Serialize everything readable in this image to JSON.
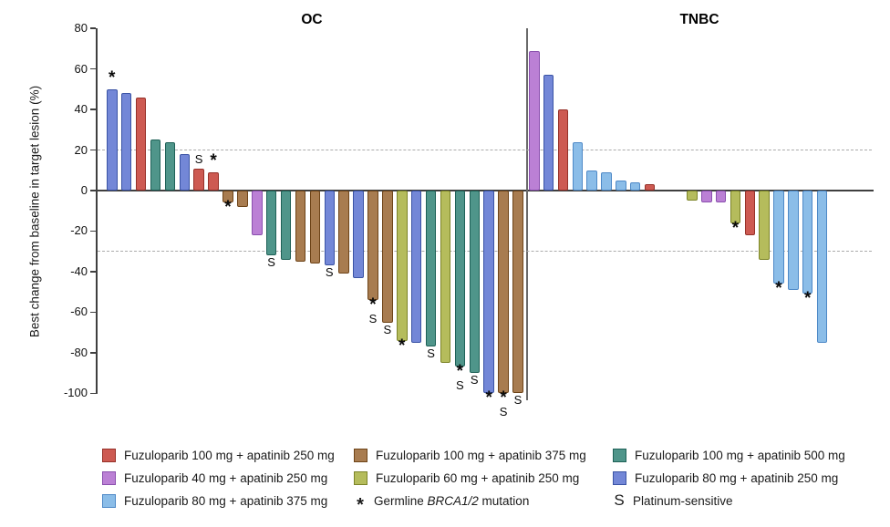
{
  "chart_data": {
    "type": "bar",
    "variant": "waterfall",
    "title": "",
    "xlabel": "",
    "ylabel": "Best change from baseline in target lesion (%)",
    "ylim": [
      -100,
      80
    ],
    "yticks": [
      80,
      60,
      40,
      20,
      0,
      -20,
      -40,
      -60,
      -80,
      -100
    ],
    "reference_lines": [
      20,
      -30
    ],
    "grid": "off",
    "legend_position": "bottom",
    "groups": {
      "f100a250": {
        "label": "Fuzuloparib 100 mg + apatinib 250 mg",
        "fill": "#cd5a52",
        "edge": "#963129"
      },
      "f100a375": {
        "label": "Fuzuloparib 100 mg + apatinib 375 mg",
        "fill": "#a87c50",
        "edge": "#6e4418"
      },
      "f100a500": {
        "label": "Fuzuloparib 100 mg + apatinib 500 mg",
        "fill": "#4f958a",
        "edge": "#1e6157"
      },
      "f40a250": {
        "label": "Fuzuloparib 40 mg + apatinib 250 mg",
        "fill": "#bb80d5",
        "edge": "#8a4fae"
      },
      "f60a250": {
        "label": "Fuzuloparib 60 mg + apatinib 250 mg",
        "fill": "#b5bc5c",
        "edge": "#7c8428"
      },
      "f80a250": {
        "label": "Fuzuloparib 80 mg + apatinib 250 mg",
        "fill": "#7387d7",
        "edge": "#3a53a5"
      },
      "f80a375": {
        "label": "Fuzuloparib 80 mg + apatinib 375 mg",
        "fill": "#8bbde8",
        "edge": "#4e89c7"
      }
    },
    "markers": {
      "brca": {
        "symbol": "*",
        "label_parts": [
          {
            "text": "Germline "
          },
          {
            "text": "BRCA1/2",
            "italic": true
          },
          {
            "text": " mutation"
          }
        ]
      },
      "plat": {
        "symbol": "S",
        "label_parts": [
          {
            "text": "Platinum-sensitive"
          }
        ]
      }
    },
    "legend_order": [
      [
        "f100a250",
        "f100a375",
        "f100a500"
      ],
      [
        "f40a250",
        "f60a250",
        "f80a250"
      ],
      [
        "f80a375",
        "marker:brca",
        "marker:plat"
      ]
    ],
    "panels": [
      {
        "label": "OC",
        "bars": [
          {
            "value": 50,
            "group": "f80a250",
            "flags": [
              "brca"
            ]
          },
          {
            "value": 48,
            "group": "f80a250",
            "flags": []
          },
          {
            "value": 46,
            "group": "f100a250",
            "flags": []
          },
          {
            "value": 25,
            "group": "f100a500",
            "flags": []
          },
          {
            "value": 24,
            "group": "f100a500",
            "flags": []
          },
          {
            "value": 18,
            "group": "f80a250",
            "flags": []
          },
          {
            "value": 11,
            "group": "f100a250",
            "flags": [
              "plat"
            ]
          },
          {
            "value": 9,
            "group": "f100a250",
            "flags": [
              "brca"
            ]
          },
          {
            "value": -6,
            "group": "f100a375",
            "flags": [
              "brca"
            ]
          },
          {
            "value": -8,
            "group": "f100a375",
            "flags": []
          },
          {
            "value": -22,
            "group": "f40a250",
            "flags": []
          },
          {
            "value": -32,
            "group": "f100a500",
            "flags": [
              "plat"
            ]
          },
          {
            "value": -34,
            "group": "f100a500",
            "flags": []
          },
          {
            "value": -35,
            "group": "f100a375",
            "flags": []
          },
          {
            "value": -36,
            "group": "f100a375",
            "flags": []
          },
          {
            "value": -37,
            "group": "f80a250",
            "flags": [
              "plat"
            ]
          },
          {
            "value": -41,
            "group": "f100a375",
            "flags": []
          },
          {
            "value": -43,
            "group": "f80a250",
            "flags": []
          },
          {
            "value": -54,
            "group": "f100a375",
            "flags": [
              "brca",
              "plat"
            ]
          },
          {
            "value": -65,
            "group": "f100a375",
            "flags": [
              "plat"
            ]
          },
          {
            "value": -74,
            "group": "f60a250",
            "flags": [
              "brca"
            ]
          },
          {
            "value": -75,
            "group": "f80a250",
            "flags": []
          },
          {
            "value": -77,
            "group": "f100a500",
            "flags": [
              "plat"
            ]
          },
          {
            "value": -85,
            "group": "f60a250",
            "flags": []
          },
          {
            "value": -87,
            "group": "f100a500",
            "flags": [
              "brca",
              "plat"
            ]
          },
          {
            "value": -90,
            "group": "f100a500",
            "flags": [
              "plat"
            ]
          },
          {
            "value": -100,
            "group": "f80a250",
            "flags": [
              "brca"
            ]
          },
          {
            "value": -100,
            "group": "f100a375",
            "flags": [
              "brca",
              "plat"
            ]
          },
          {
            "value": -100,
            "group": "f100a375",
            "flags": [
              "plat"
            ]
          }
        ]
      },
      {
        "label": "TNBC",
        "bars": [
          {
            "value": 69,
            "group": "f40a250",
            "flags": []
          },
          {
            "value": 57,
            "group": "f80a250",
            "flags": []
          },
          {
            "value": 40,
            "group": "f100a250",
            "flags": []
          },
          {
            "value": 24,
            "group": "f80a375",
            "flags": []
          },
          {
            "value": 10,
            "group": "f80a375",
            "flags": []
          },
          {
            "value": 9,
            "group": "f80a375",
            "flags": []
          },
          {
            "value": 5,
            "group": "f80a375",
            "flags": []
          },
          {
            "value": 4,
            "group": "f80a375",
            "flags": []
          },
          {
            "value": 3,
            "group": "f100a250",
            "flags": []
          },
          {
            "value": -5,
            "group": "f60a250",
            "flags": [],
            "gap_before": true
          },
          {
            "value": -6,
            "group": "f40a250",
            "flags": []
          },
          {
            "value": -6,
            "group": "f40a250",
            "flags": []
          },
          {
            "value": -16,
            "group": "f60a250",
            "flags": [
              "brca"
            ]
          },
          {
            "value": -22,
            "group": "f100a250",
            "flags": []
          },
          {
            "value": -34,
            "group": "f60a250",
            "flags": []
          },
          {
            "value": -46,
            "group": "f80a375",
            "flags": [
              "brca"
            ]
          },
          {
            "value": -49,
            "group": "f80a375",
            "flags": []
          },
          {
            "value": -51,
            "group": "f80a375",
            "flags": [
              "brca"
            ]
          },
          {
            "value": -75,
            "group": "f80a375",
            "flags": []
          }
        ]
      }
    ]
  }
}
